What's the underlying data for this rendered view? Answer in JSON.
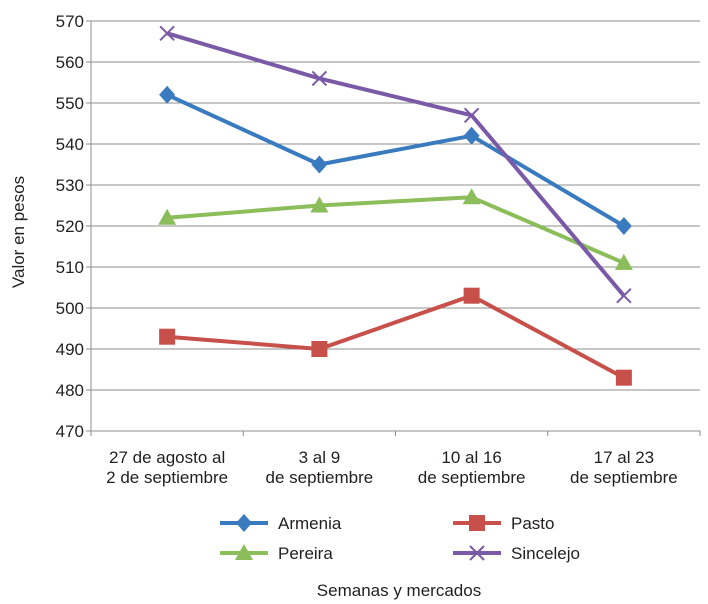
{
  "chart_data": {
    "type": "line",
    "title": "",
    "xlabel": "Semanas y mercados",
    "ylabel": "Valor en pesos",
    "ylim": [
      470,
      570
    ],
    "ytick_step": 10,
    "grid": "horizontal",
    "legend_position": "bottom",
    "categories": [
      [
        "27 de agosto al",
        "2 de septiembre"
      ],
      [
        "3 al 9",
        "de septiembre"
      ],
      [
        "10 al 16",
        "de septiembre"
      ],
      [
        "17 al 23",
        "de septiembre"
      ]
    ],
    "series": [
      {
        "name": "Armenia",
        "color": "#3a7bc0",
        "marker": "diamond",
        "values": [
          552,
          535,
          542,
          520
        ]
      },
      {
        "name": "Pasto",
        "color": "#c8504b",
        "marker": "square",
        "values": [
          493,
          490,
          503,
          483
        ]
      },
      {
        "name": "Pereira",
        "color": "#8bbd5a",
        "marker": "triangle",
        "values": [
          522,
          525,
          527,
          511
        ]
      },
      {
        "name": "Sincelejo",
        "color": "#7a5aa6",
        "marker": "x",
        "values": [
          567,
          556,
          547,
          503
        ]
      }
    ]
  }
}
